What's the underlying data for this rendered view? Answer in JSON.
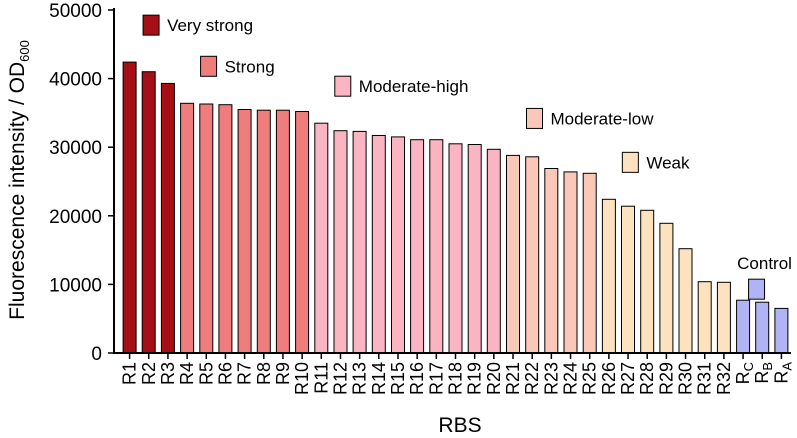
{
  "chart_data": {
    "type": "bar",
    "xlabel": "RBS",
    "ylabel": "Fluorescence intensity / OD",
    "ylabel_subscript": "600",
    "ylim": [
      0,
      50000
    ],
    "yticks": [
      0,
      10000,
      20000,
      30000,
      40000,
      50000
    ],
    "grid": false,
    "categories": [
      "R1",
      "R2",
      "R3",
      "R4",
      "R5",
      "R6",
      "R7",
      "R8",
      "R9",
      "R10",
      "R11",
      "R12",
      "R13",
      "R14",
      "R15",
      "R16",
      "R17",
      "R18",
      "R19",
      "R20",
      "R21",
      "R22",
      "R23",
      "R24",
      "R25",
      "R26",
      "R27",
      "R28",
      "R29",
      "R30",
      "R31",
      "R32",
      "RC",
      "RB",
      "RA"
    ],
    "values": [
      42400,
      41000,
      39300,
      36400,
      36300,
      36200,
      35500,
      35400,
      35400,
      35200,
      33500,
      32400,
      32300,
      31700,
      31500,
      31100,
      31100,
      30500,
      30400,
      29700,
      28800,
      28600,
      26900,
      26400,
      26200,
      22400,
      21400,
      20800,
      18900,
      15200,
      10400,
      10300,
      7700,
      7400,
      6500
    ],
    "groups": [
      "Very strong",
      "Very strong",
      "Very strong",
      "Strong",
      "Strong",
      "Strong",
      "Strong",
      "Strong",
      "Strong",
      "Strong",
      "Moderate-high",
      "Moderate-high",
      "Moderate-high",
      "Moderate-high",
      "Moderate-high",
      "Moderate-high",
      "Moderate-high",
      "Moderate-high",
      "Moderate-high",
      "Moderate-high",
      "Moderate-low",
      "Moderate-low",
      "Moderate-low",
      "Moderate-low",
      "Moderate-low",
      "Weak",
      "Weak",
      "Weak",
      "Weak",
      "Weak",
      "Weak",
      "Weak",
      "Control",
      "Control",
      "Control"
    ],
    "legend": [
      {
        "name": "Very strong",
        "color": "#a50f15"
      },
      {
        "name": "Strong",
        "color": "#f07d7d"
      },
      {
        "name": "Moderate-high",
        "color": "#fbb4c2"
      },
      {
        "name": "Moderate-low",
        "color": "#fac8b8"
      },
      {
        "name": "Weak",
        "color": "#fde2c0"
      },
      {
        "name": "Control",
        "color": "#b0b3f4"
      }
    ]
  }
}
